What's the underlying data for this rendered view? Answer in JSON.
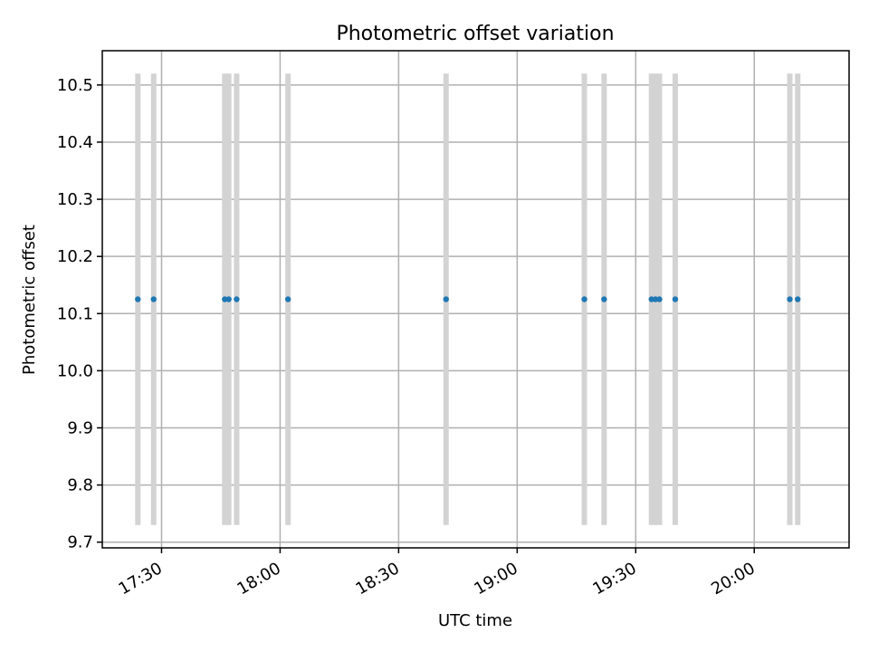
{
  "chart_data": {
    "type": "scatter",
    "title": "Photometric offset variation",
    "xlabel": "UTC time",
    "ylabel": "Photometric offset",
    "xlim": [
      "17:15",
      "20:24"
    ],
    "ylim": [
      9.69,
      10.56
    ],
    "x_ticks": [
      "17:30",
      "18:00",
      "18:30",
      "19:00",
      "19:30",
      "20:00"
    ],
    "y_ticks": [
      9.7,
      9.8,
      9.9,
      10.0,
      10.1,
      10.2,
      10.3,
      10.4,
      10.5
    ],
    "grid": true,
    "series": [
      {
        "marker_color": "#1f77b4",
        "errorbar_color": "#d3d3d3",
        "points": [
          {
            "x": "17:24",
            "y": 10.125,
            "err_low": 9.73,
            "err_high": 10.52
          },
          {
            "x": "17:28",
            "y": 10.125,
            "err_low": 9.73,
            "err_high": 10.52
          },
          {
            "x": "17:46",
            "y": 10.125,
            "err_low": 9.73,
            "err_high": 10.52
          },
          {
            "x": "17:47",
            "y": 10.125,
            "err_low": 9.73,
            "err_high": 10.52
          },
          {
            "x": "17:49",
            "y": 10.125,
            "err_low": 9.73,
            "err_high": 10.52
          },
          {
            "x": "18:02",
            "y": 10.125,
            "err_low": 9.73,
            "err_high": 10.52
          },
          {
            "x": "18:42",
            "y": 10.125,
            "err_low": 9.73,
            "err_high": 10.52
          },
          {
            "x": "19:17",
            "y": 10.125,
            "err_low": 9.73,
            "err_high": 10.52
          },
          {
            "x": "19:22",
            "y": 10.125,
            "err_low": 9.73,
            "err_high": 10.52
          },
          {
            "x": "19:34",
            "y": 10.125,
            "err_low": 9.73,
            "err_high": 10.52
          },
          {
            "x": "19:35",
            "y": 10.125,
            "err_low": 9.73,
            "err_high": 10.52
          },
          {
            "x": "19:36",
            "y": 10.125,
            "err_low": 9.73,
            "err_high": 10.52
          },
          {
            "x": "19:40",
            "y": 10.125,
            "err_low": 9.73,
            "err_high": 10.52
          },
          {
            "x": "20:09",
            "y": 10.125,
            "err_low": 9.73,
            "err_high": 10.52
          },
          {
            "x": "20:11",
            "y": 10.125,
            "err_low": 9.73,
            "err_high": 10.52
          }
        ]
      }
    ]
  }
}
